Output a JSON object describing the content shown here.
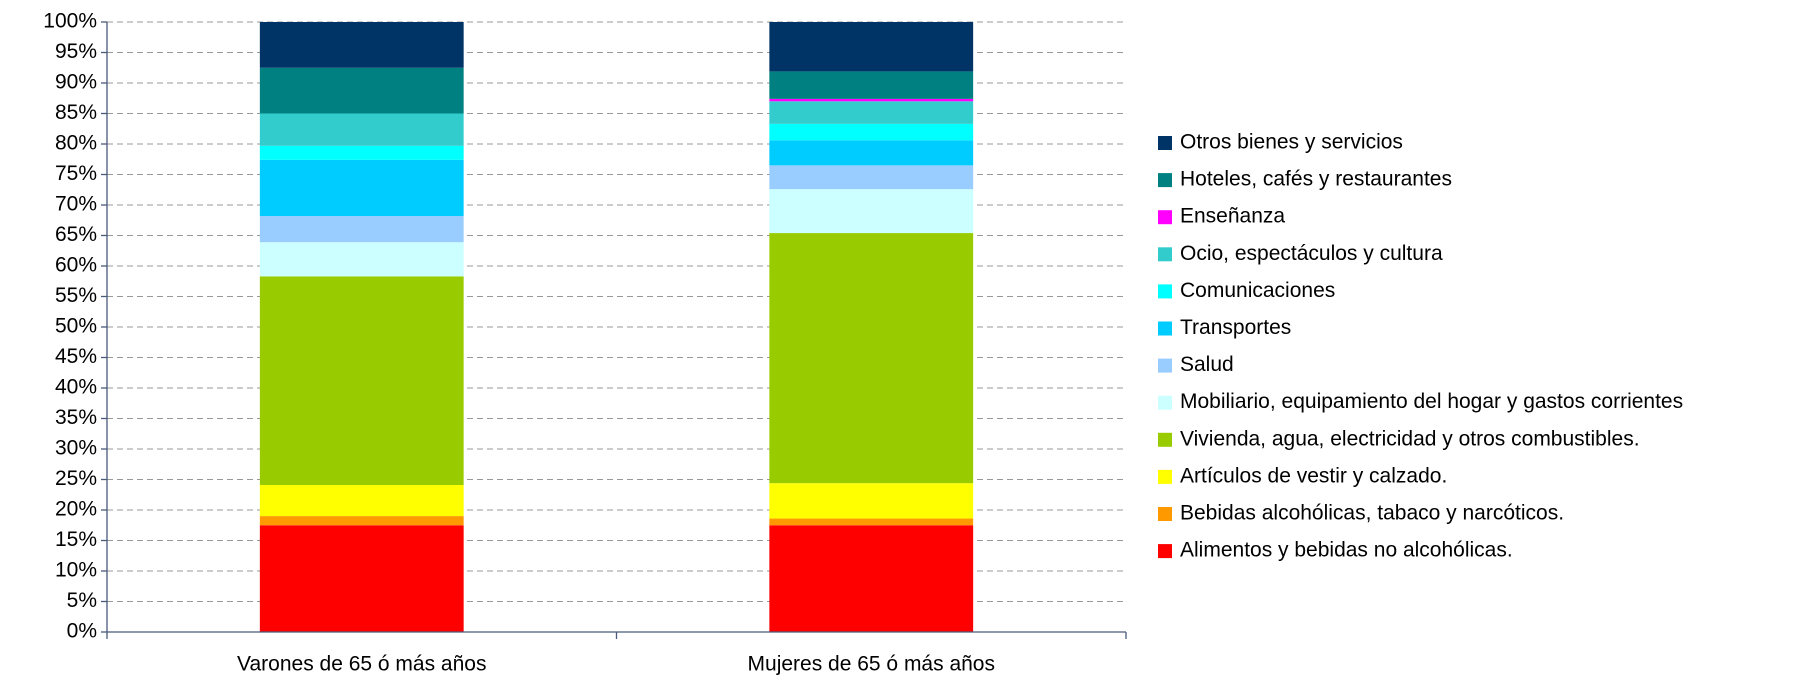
{
  "chart_data": {
    "type": "stacked_bar",
    "categories": [
      "Varones de 65 ó más años",
      "Mujeres de 65 ó más años"
    ],
    "series": [
      {
        "name": "Alimentos y bebidas no alcohólicas.",
        "color": "#ff0000",
        "values": [
          17.5,
          17.5
        ]
      },
      {
        "name": "Bebidas alcohólicas, tabaco y narcóticos.",
        "color": "#ff9900",
        "values": [
          1.5,
          1.1
        ]
      },
      {
        "name": "Artículos de vestir y calzado.",
        "color": "#ffff00",
        "values": [
          5.1,
          5.8
        ]
      },
      {
        "name": "Vivienda, agua, electricidad y otros combustibles.",
        "color": "#99cc00",
        "values": [
          34.2,
          41.0
        ]
      },
      {
        "name": "Mobiliario, equipamiento del hogar y gastos corrientes",
        "color": "#ccffff",
        "values": [
          5.6,
          7.2
        ]
      },
      {
        "name": "Salud",
        "color": "#99ccff",
        "values": [
          4.3,
          3.9
        ]
      },
      {
        "name": "Transportes",
        "color": "#00ccff",
        "values": [
          9.2,
          4.1
        ]
      },
      {
        "name": "Comunicaciones",
        "color": "#00ffff",
        "values": [
          2.3,
          2.7
        ]
      },
      {
        "name": "Ocio, espectáculos y cultura",
        "color": "#33cccc",
        "values": [
          5.3,
          3.7
        ]
      },
      {
        "name": "Enseñanza",
        "color": "#ff00ff",
        "values": [
          0,
          0.4
        ]
      },
      {
        "name": "Hoteles, cafés y restaurantes",
        "color": "#008080",
        "values": [
          7.5,
          4.5
        ]
      },
      {
        "name": "Otros bienes y servicios",
        "color": "#003366",
        "values": [
          7.5,
          8.1
        ]
      }
    ],
    "ylim": [
      0,
      100
    ],
    "yticks": [
      {
        "value": 0,
        "label": "0%"
      },
      {
        "value": 5,
        "label": "5%"
      },
      {
        "value": 10,
        "label": "10%"
      },
      {
        "value": 15,
        "label": "15%"
      },
      {
        "value": 20,
        "label": "20%"
      },
      {
        "value": 25,
        "label": "25%"
      },
      {
        "value": 30,
        "label": "30%"
      },
      {
        "value": 35,
        "label": "35%"
      },
      {
        "value": 40,
        "label": "40%"
      },
      {
        "value": 45,
        "label": "45%"
      },
      {
        "value": 50,
        "label": "50%"
      },
      {
        "value": 55,
        "label": "55%"
      },
      {
        "value": 60,
        "label": "60%"
      },
      {
        "value": 65,
        "label": "65%"
      },
      {
        "value": 70,
        "label": "70%"
      },
      {
        "value": 75,
        "label": "75%"
      },
      {
        "value": 80,
        "label": "80%"
      },
      {
        "value": 85,
        "label": "85%"
      },
      {
        "value": 90,
        "label": "90%"
      },
      {
        "value": 95,
        "label": "95%"
      },
      {
        "value": 100,
        "label": "100%"
      }
    ],
    "grid": true,
    "legend": "right"
  }
}
